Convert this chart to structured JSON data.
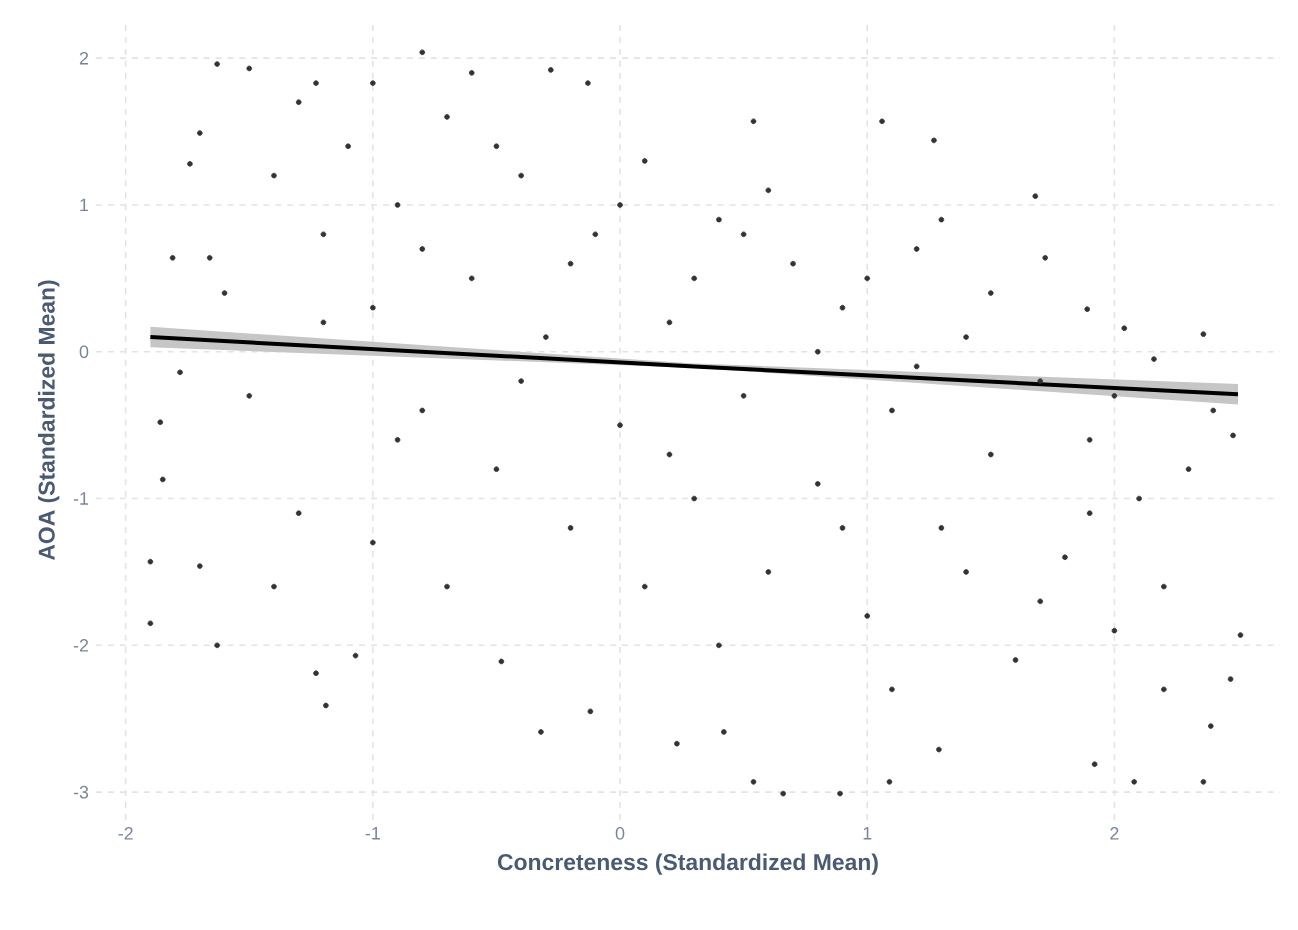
{
  "chart_data": {
    "type": "scatter",
    "xlabel": "Concreteness (Standardized Mean)",
    "ylabel": "AOA (Standardized Mean)",
    "xlim": [
      -2.12,
      2.67
    ],
    "ylim": [
      -3.19,
      2.26
    ],
    "xticks": [
      -2,
      -1,
      0,
      1,
      2
    ],
    "yticks": [
      -3,
      -2,
      -1,
      0,
      1,
      2
    ],
    "grid": true,
    "series": [
      {
        "color": "#333333",
        "marker": "circle",
        "x": [
          -1.9,
          -1.63,
          -1.23,
          -1.19,
          -1.07,
          -0.48,
          -0.32,
          -0.12,
          -1.9,
          -1.7,
          -1.85,
          2.51,
          2.47,
          2.36,
          2.08,
          1.09,
          0.89,
          0.66,
          0.54,
          1.29,
          1.92,
          2.39,
          0.23,
          0.42,
          -0.8,
          -1.63,
          -1.5,
          -0.28,
          -1.7,
          -1.74,
          -1.81,
          -1.66,
          -1.78,
          -1.86,
          -1.23,
          -1.0,
          -0.13,
          0.54,
          1.06,
          1.27,
          1.68,
          1.72,
          1.89,
          2.04,
          2.36,
          2.4,
          2.48,
          2.16,
          -1.4,
          -1.2,
          -1.1,
          -1.0,
          -0.9,
          -0.8,
          -0.7,
          -0.6,
          -0.5,
          -0.4,
          -0.3,
          -0.2,
          -0.1,
          0.0,
          0.1,
          0.2,
          0.3,
          0.4,
          0.5,
          0.6,
          0.7,
          0.8,
          0.9,
          1.0,
          1.1,
          1.2,
          1.3,
          1.4,
          1.5,
          1.6,
          1.7,
          1.8,
          1.9,
          2.0,
          2.1,
          2.2,
          2.3,
          -1.5,
          -1.3,
          -1.2,
          -1.0,
          -0.9,
          -0.7,
          -0.6,
          -0.4,
          -0.2,
          0.0,
          0.1,
          0.3,
          0.4,
          0.6,
          0.8,
          1.0,
          1.1,
          1.3,
          1.5,
          1.7,
          2.2,
          2.0,
          -1.4,
          -1.6,
          -1.3,
          -0.8,
          -0.5,
          0.2,
          0.5,
          0.9,
          1.2,
          1.4,
          1.9
        ],
        "values": [
          -1.85,
          -2.0,
          -2.19,
          -2.41,
          -2.07,
          -2.11,
          -2.59,
          -2.45,
          -1.43,
          -1.46,
          -0.87,
          -1.93,
          -2.23,
          -2.93,
          -2.93,
          -2.93,
          -3.01,
          -3.01,
          -2.93,
          -2.71,
          -2.81,
          -2.55,
          -2.67,
          -2.59,
          2.04,
          1.96,
          1.93,
          1.92,
          1.49,
          1.28,
          0.64,
          0.64,
          -0.14,
          -0.48,
          1.83,
          1.83,
          1.83,
          1.57,
          1.57,
          1.44,
          1.06,
          0.64,
          0.29,
          0.16,
          0.12,
          -0.4,
          -0.57,
          -0.05,
          1.2,
          0.8,
          1.4,
          0.3,
          1.0,
          -0.4,
          1.6,
          0.5,
          -0.8,
          1.2,
          0.1,
          -1.2,
          0.8,
          -0.5,
          1.3,
          0.2,
          -1.0,
          0.9,
          -0.3,
          -1.5,
          0.6,
          -0.9,
          0.3,
          -1.8,
          -0.4,
          0.7,
          -1.2,
          0.1,
          -0.7,
          -2.1,
          -0.2,
          -1.4,
          -0.6,
          -1.9,
          -1.0,
          -1.6,
          -0.8,
          -0.3,
          -1.1,
          0.2,
          -1.3,
          -0.6,
          -1.6,
          1.9,
          -0.2,
          0.6,
          1.0,
          -1.6,
          0.5,
          -2.0,
          1.1,
          0.0,
          0.5,
          -2.3,
          0.9,
          0.4,
          -1.7,
          -2.3,
          -0.3,
          -1.6,
          0.4,
          1.7,
          0.7,
          1.4,
          -0.7,
          0.8,
          -1.2,
          -0.1,
          -1.5,
          -1.1
        ]
      },
      {
        "type": "line",
        "color": "#000000",
        "x": [
          -1.9,
          0.3,
          2.5
        ],
        "values": [
          0.1,
          -0.1,
          -0.29
        ],
        "lower": [
          0.03,
          -0.11,
          -0.36
        ],
        "upper": [
          0.17,
          -0.08,
          -0.22
        ]
      }
    ]
  }
}
